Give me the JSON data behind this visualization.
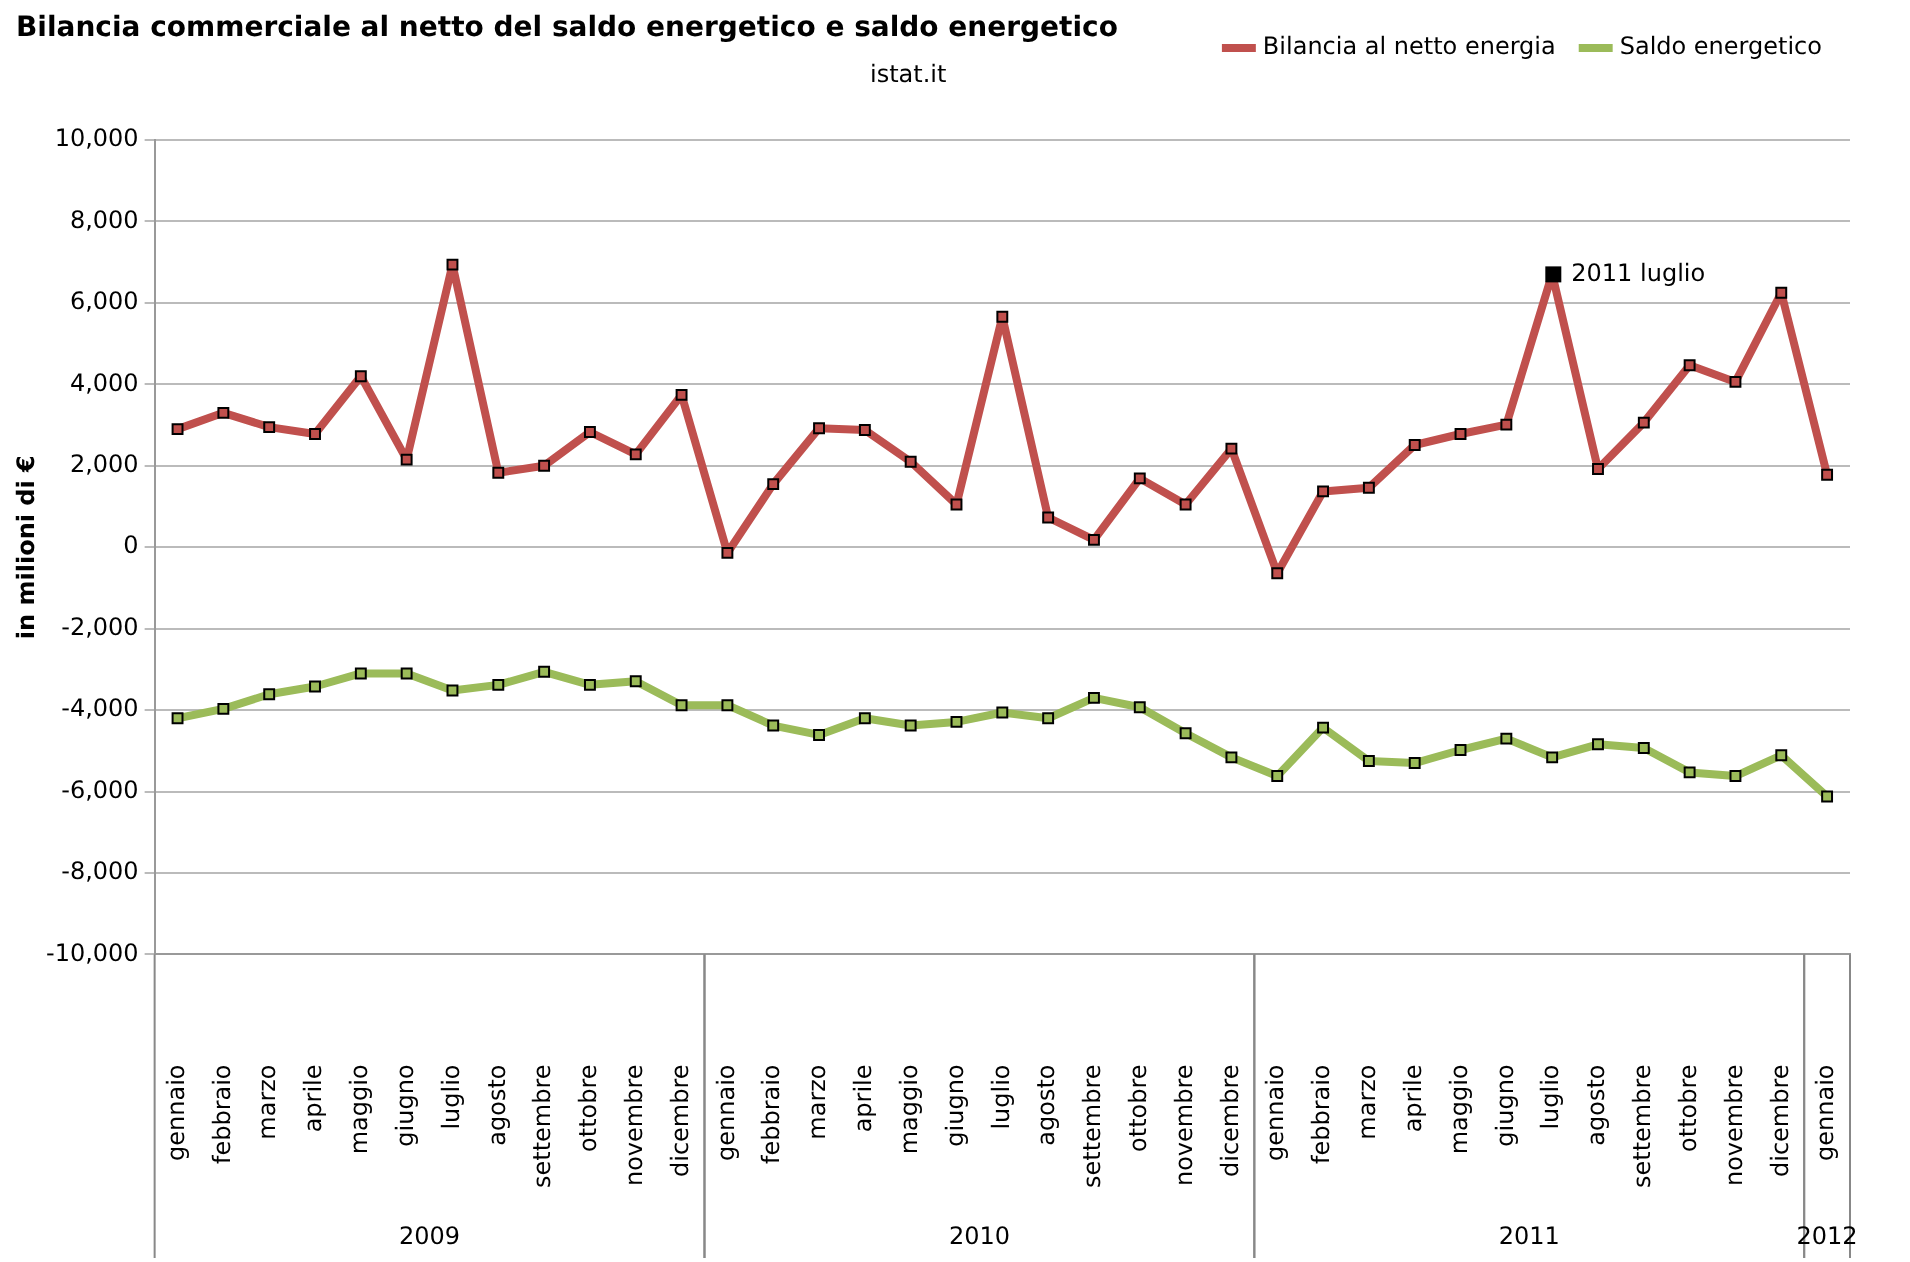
{
  "chart_data": {
    "type": "line",
    "title": "Bilancia commerciale al netto del saldo energetico e saldo energetico",
    "ylabel": "in milioni di €",
    "categories": [
      "gennaio",
      "febbraio",
      "marzo",
      "aprile",
      "maggio",
      "giugno",
      "luglio",
      "agosto",
      "settembre",
      "ottobre",
      "novembre",
      "dicembre",
      "gennaio",
      "febbraio",
      "marzo",
      "aprile",
      "maggio",
      "giugno",
      "luglio",
      "agosto",
      "settembre",
      "ottobre",
      "novembre",
      "dicembre",
      "gennaio",
      "febbraio",
      "marzo",
      "aprile",
      "maggio",
      "giugno",
      "luglio",
      "agosto",
      "settembre",
      "ottobre",
      "novembre",
      "dicembre",
      "gennaio"
    ],
    "series": [
      {
        "name": "Bilancia al netto energia",
        "color": "#c0504d",
        "values": [
          2900,
          3300,
          2950,
          2780,
          4200,
          2150,
          6940,
          1830,
          2000,
          2830,
          2280,
          3740,
          -140,
          1550,
          2920,
          2880,
          2100,
          1050,
          5660,
          730,
          180,
          1690,
          1050,
          2420,
          -640,
          1370,
          1460,
          2510,
          2780,
          3010,
          6710,
          1920,
          3060,
          4470,
          4060,
          6250,
          1780
        ]
      },
      {
        "name": "Saldo energetico",
        "color": "#9bbb59",
        "values": [
          -4200,
          -3970,
          -3610,
          -3420,
          -3100,
          -3100,
          -3520,
          -3380,
          -3060,
          -3380,
          -3290,
          -3880,
          -3880,
          -4380,
          -4610,
          -4200,
          -4380,
          -4290,
          -4060,
          -4200,
          -3700,
          -3930,
          -4570,
          -5160,
          -5620,
          -4430,
          -5250,
          -5300,
          -4980,
          -4700,
          -5160,
          -4840,
          -4930,
          -5530,
          -5620,
          -5110,
          -6120
        ]
      }
    ],
    "ylim": [
      -10000,
      10000
    ],
    "yticks": [
      {
        "value": -10000,
        "label": "-10,000"
      },
      {
        "value": -8000,
        "label": "-8,000"
      },
      {
        "value": -6000,
        "label": "-6,000"
      },
      {
        "value": -4000,
        "label": "-4,000"
      },
      {
        "value": -2000,
        "label": "-2,000"
      },
      0,
      {
        "value": 2000,
        "label": "2,000"
      },
      {
        "value": 4000,
        "label": "4,000"
      },
      {
        "value": 6000,
        "label": "6,000"
      },
      {
        "value": 8000,
        "label": "8,000"
      },
      {
        "value": 10000,
        "label": "10,000"
      }
    ],
    "grid": "y",
    "legend": "top right",
    "marker": "square",
    "line_style": "solid",
    "annotations": [
      "istat.it",
      "2011 luglio",
      "2009",
      "2010",
      "2011",
      "2012"
    ]
  }
}
